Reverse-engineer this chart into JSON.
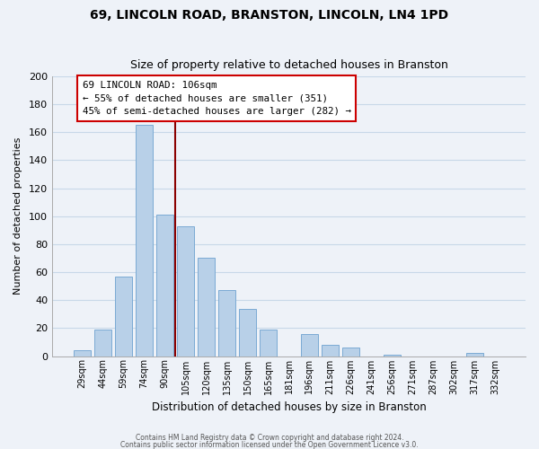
{
  "title": "69, LINCOLN ROAD, BRANSTON, LINCOLN, LN4 1PD",
  "subtitle": "Size of property relative to detached houses in Branston",
  "xlabel": "Distribution of detached houses by size in Branston",
  "ylabel": "Number of detached properties",
  "bar_labels": [
    "29sqm",
    "44sqm",
    "59sqm",
    "74sqm",
    "90sqm",
    "105sqm",
    "120sqm",
    "135sqm",
    "150sqm",
    "165sqm",
    "181sqm",
    "196sqm",
    "211sqm",
    "226sqm",
    "241sqm",
    "256sqm",
    "271sqm",
    "287sqm",
    "302sqm",
    "317sqm",
    "332sqm"
  ],
  "bar_heights": [
    4,
    19,
    57,
    165,
    101,
    93,
    70,
    47,
    34,
    19,
    0,
    16,
    8,
    6,
    0,
    1,
    0,
    0,
    0,
    2,
    0
  ],
  "bar_color": "#b8d0e8",
  "bar_edge_color": "#7baad4",
  "ylim": [
    0,
    200
  ],
  "yticks": [
    0,
    20,
    40,
    60,
    80,
    100,
    120,
    140,
    160,
    180,
    200
  ],
  "vline_color": "#8b0000",
  "annotation_title": "69 LINCOLN ROAD: 106sqm",
  "annotation_line1": "← 55% of detached houses are smaller (351)",
  "annotation_line2": "45% of semi-detached houses are larger (282) →",
  "annotation_box_color": "#ffffff",
  "annotation_box_edge": "#cc0000",
  "footer1": "Contains HM Land Registry data © Crown copyright and database right 2024.",
  "footer2": "Contains public sector information licensed under the Open Government Licence v3.0.",
  "grid_color": "#c8d8e8",
  "background_color": "#eef2f8",
  "title_fontsize": 10,
  "subtitle_fontsize": 9
}
